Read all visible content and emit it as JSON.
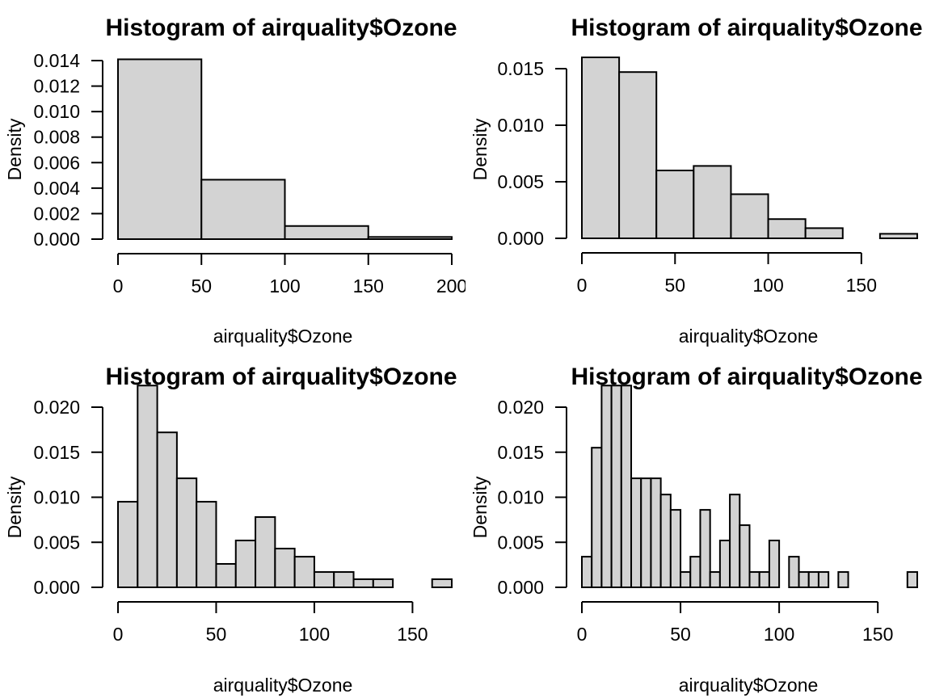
{
  "chart_data": [
    {
      "type": "bar",
      "title": "Histogram of airquality$Ozone",
      "xlabel": "airquality$Ozone",
      "ylabel": "Density",
      "xlim": [
        0,
        200
      ],
      "ylim": [
        0,
        0.014
      ],
      "x_ticks": [
        0,
        50,
        100,
        150,
        200
      ],
      "x_tick_labels": [
        "0",
        "50",
        "100",
        "150",
        "200"
      ],
      "y_ticks": [
        0,
        0.002,
        0.004,
        0.006,
        0.008,
        0.01,
        0.012,
        0.014
      ],
      "y_tick_labels": [
        "0.000",
        "0.002",
        "0.004",
        "0.006",
        "0.008",
        "0.010",
        "0.012",
        "0.014"
      ],
      "bin_edges": [
        0,
        50,
        100,
        150,
        200
      ],
      "values": [
        0.0141,
        0.00466,
        0.00103,
        0.00017
      ]
    },
    {
      "type": "bar",
      "title": "Histogram of airquality$Ozone",
      "xlabel": "airquality$Ozone",
      "ylabel": "Density",
      "xlim": [
        0,
        180
      ],
      "ylim": [
        0,
        0.016
      ],
      "x_ticks": [
        0,
        50,
        100,
        150
      ],
      "x_tick_labels": [
        "0",
        "50",
        "100",
        "150"
      ],
      "y_ticks": [
        0,
        0.005,
        0.01,
        0.015
      ],
      "y_tick_labels": [
        "0.000",
        "0.005",
        "0.010",
        "0.015"
      ],
      "bin_edges": [
        0,
        20,
        40,
        60,
        80,
        100,
        120,
        140,
        160,
        180
      ],
      "values": [
        0.016,
        0.0147,
        0.006,
        0.0064,
        0.0039,
        0.0017,
        0.0009,
        0.0,
        0.0004
      ]
    },
    {
      "type": "bar",
      "title": "Histogram of airquality$Ozone",
      "xlabel": "airquality$Ozone",
      "ylabel": "Density",
      "xlim": [
        0,
        170
      ],
      "ylim": [
        0,
        0.02
      ],
      "x_ticks": [
        0,
        50,
        100,
        150
      ],
      "x_tick_labels": [
        "0",
        "50",
        "100",
        "150"
      ],
      "y_ticks": [
        0,
        0.005,
        0.01,
        0.015,
        0.02
      ],
      "y_tick_labels": [
        "0.000",
        "0.005",
        "0.010",
        "0.015",
        "0.020"
      ],
      "bin_edges": [
        0,
        10,
        20,
        30,
        40,
        50,
        60,
        70,
        80,
        90,
        100,
        110,
        120,
        130,
        140,
        150,
        160,
        170
      ],
      "values": [
        0.0095,
        0.0224,
        0.0172,
        0.0121,
        0.0095,
        0.0026,
        0.0052,
        0.0078,
        0.0043,
        0.0034,
        0.0017,
        0.0017,
        0.0009,
        0.0009,
        0.0,
        0.0,
        0.0009
      ]
    },
    {
      "type": "bar",
      "title": "Histogram of airquality$Ozone",
      "xlabel": "airquality$Ozone",
      "ylabel": "Density",
      "xlim": [
        0,
        170
      ],
      "ylim": [
        0,
        0.02
      ],
      "x_ticks": [
        0,
        50,
        100,
        150
      ],
      "x_tick_labels": [
        "0",
        "50",
        "100",
        "150"
      ],
      "y_ticks": [
        0,
        0.005,
        0.01,
        0.015,
        0.02
      ],
      "y_tick_labels": [
        "0.000",
        "0.005",
        "0.010",
        "0.015",
        "0.020"
      ],
      "bin_edges": [
        0,
        5,
        10,
        15,
        20,
        25,
        30,
        35,
        40,
        45,
        50,
        55,
        60,
        65,
        70,
        75,
        80,
        85,
        90,
        95,
        100,
        105,
        110,
        115,
        120,
        125,
        130,
        135,
        140,
        145,
        150,
        155,
        160,
        165,
        170
      ],
      "values": [
        0.0034,
        0.0155,
        0.0224,
        0.0224,
        0.0224,
        0.0121,
        0.0121,
        0.0121,
        0.0103,
        0.0086,
        0.0017,
        0.0034,
        0.0086,
        0.0017,
        0.0052,
        0.0103,
        0.0069,
        0.0017,
        0.0017,
        0.0052,
        0.0,
        0.0034,
        0.0017,
        0.0017,
        0.0017,
        0.0,
        0.0017,
        0.0,
        0.0,
        0.0,
        0.0,
        0.0,
        0.0,
        0.0017
      ]
    }
  ]
}
